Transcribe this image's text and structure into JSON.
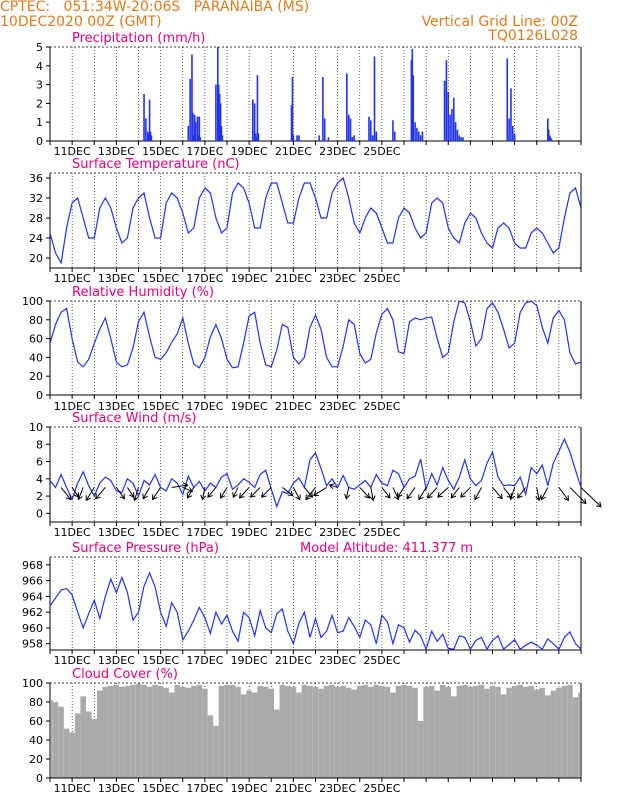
{
  "header": {
    "line1_left": "CPTEC:   051:34W-20:06S   PARANAIBA (MS)",
    "line2_left": "10DEC2020 00Z (GMT)",
    "line1_right": "Vertical Grid Line: 00Z",
    "line2_right": "TQ0126L028"
  },
  "colors": {
    "header": "#e07a1e",
    "title": "#e6007e",
    "line": "#2233ee",
    "cloud": "#aaaaaa",
    "wind_arrow": "#000000"
  },
  "chart_data": [
    {
      "type": "bar",
      "title": "Precipitation (mm/h)",
      "x_tick_labels": [
        "11DEC",
        "13DEC",
        "15DEC",
        "17DEC",
        "19DEC",
        "21DEC",
        "23DEC",
        "25DEC"
      ],
      "ylim": [
        0,
        5
      ],
      "yticks": [
        0,
        1,
        2,
        3,
        4,
        5
      ],
      "x_hours": [
        102,
        104,
        106,
        107,
        108,
        109,
        110,
        150,
        152,
        154,
        155,
        156,
        157,
        158,
        160,
        161,
        162,
        163,
        180,
        182,
        183,
        184,
        185,
        186,
        187,
        220,
        222,
        223,
        224,
        225,
        226,
        262,
        263,
        264,
        268,
        270,
        292,
        296,
        298,
        302,
        322,
        324,
        326,
        328,
        330,
        346,
        348,
        350,
        352,
        354,
        354,
        372,
        374,
        392,
        393,
        394,
        396,
        398,
        400,
        402,
        404,
        428,
        430,
        432,
        434,
        436,
        438,
        440,
        442,
        444,
        446,
        448,
        496,
        498,
        500,
        502,
        504,
        540,
        541,
        542,
        543,
        544,
        545
      ],
      "values": [
        2.5,
        1.2,
        0.5,
        0.4,
        2.2,
        0.5,
        0.3,
        0.8,
        3.3,
        4.6,
        1.5,
        0.3,
        1.4,
        1.0,
        1.3,
        0.3,
        1.3,
        0.2,
        3.0,
        5.0,
        3.0,
        2.5,
        2.0,
        0.8,
        0.3,
        2.2,
        2.0,
        0.4,
        0.2,
        3.5,
        0.4,
        1.9,
        3.4,
        0.3,
        0.3,
        0.3,
        0.3,
        3.4,
        1.2,
        0.2,
        3.6,
        1.4,
        1.2,
        0.2,
        0.3,
        1.3,
        1.1,
        0.3,
        4.5,
        0.5,
        0.2,
        1.1,
        0.5,
        4.3,
        4.9,
        3.5,
        1.0,
        0.7,
        0.5,
        0.3,
        0.5,
        3.2,
        4.3,
        2.6,
        1.4,
        1.7,
        2.3,
        1.0,
        0.6,
        0.3,
        0.2,
        0.2,
        4.4,
        1.2,
        2.8,
        0.8,
        0.4,
        1.2,
        0.6,
        0.3,
        0.2,
        0.1,
        0.0
      ]
    },
    {
      "type": "line",
      "title": "Surface Temperature (nC)",
      "x_tick_labels": [
        "11DEC",
        "13DEC",
        "15DEC",
        "17DEC",
        "19DEC",
        "21DEC",
        "23DEC",
        "25DEC"
      ],
      "ylim": [
        18,
        37
      ],
      "yticks": [
        20,
        24,
        28,
        32,
        36
      ],
      "x_hours": [
        0,
        6,
        12,
        18,
        24,
        30,
        36,
        42,
        48,
        54,
        60,
        66,
        72,
        78,
        84,
        90,
        96,
        102,
        108,
        114,
        120,
        126,
        132,
        138,
        144,
        150,
        156,
        162,
        168,
        174,
        180,
        186,
        192,
        198,
        204,
        210,
        216,
        222,
        228,
        234,
        240,
        246,
        252,
        258,
        264,
        270,
        276,
        282,
        288,
        294,
        300,
        306,
        312,
        318,
        324,
        330,
        336,
        342,
        348,
        354,
        360,
        366,
        372,
        378,
        384,
        390,
        396,
        402,
        408,
        414,
        420,
        426,
        432,
        438,
        444,
        450,
        456,
        462,
        468,
        474,
        480,
        486,
        492,
        498,
        504,
        510,
        516,
        522,
        528,
        534,
        540,
        546,
        552,
        558,
        564,
        570,
        576
      ],
      "values": [
        25,
        21,
        19,
        26,
        31,
        32,
        28,
        24,
        24,
        30,
        32,
        30,
        26,
        23,
        24,
        30,
        32,
        33,
        28,
        24,
        24,
        31,
        33,
        32,
        29,
        25,
        26,
        32,
        34,
        33,
        28,
        25,
        26,
        33,
        35,
        34,
        31,
        26,
        26,
        32,
        35,
        35,
        31,
        27,
        27,
        32,
        35,
        35,
        32,
        28,
        28,
        33,
        35,
        36,
        32,
        27,
        25,
        28,
        30,
        29,
        26,
        23,
        23,
        28,
        30,
        29,
        26,
        24,
        25,
        31,
        32,
        31,
        26,
        24,
        23,
        27,
        29,
        28,
        25,
        23,
        22,
        26,
        27,
        26,
        23,
        22,
        22,
        25,
        26,
        25,
        23,
        21,
        22,
        28,
        33,
        34,
        30
      ]
    },
    {
      "type": "line",
      "title": "Relative Humidity (%)",
      "x_tick_labels": [
        "11DEC",
        "13DEC",
        "15DEC",
        "17DEC",
        "19DEC",
        "21DEC",
        "23DEC",
        "25DEC"
      ],
      "ylim": [
        0,
        100
      ],
      "yticks": [
        0,
        20,
        40,
        60,
        80,
        100
      ],
      "x_hours": [
        0,
        6,
        12,
        18,
        24,
        30,
        36,
        42,
        48,
        54,
        60,
        66,
        72,
        78,
        84,
        90,
        96,
        102,
        108,
        114,
        120,
        126,
        132,
        138,
        144,
        150,
        156,
        162,
        168,
        174,
        180,
        186,
        192,
        198,
        204,
        210,
        216,
        222,
        228,
        234,
        240,
        246,
        252,
        258,
        264,
        270,
        276,
        282,
        288,
        294,
        300,
        306,
        312,
        318,
        324,
        330,
        336,
        342,
        348,
        354,
        360,
        366,
        372,
        378,
        384,
        390,
        396,
        402,
        408,
        414,
        420,
        426,
        432,
        438,
        444,
        450,
        456,
        462,
        468,
        474,
        480,
        486,
        492,
        498,
        504,
        510,
        516,
        522,
        528,
        534,
        540,
        546,
        552,
        558,
        564,
        570,
        576
      ],
      "values": [
        55,
        75,
        88,
        92,
        60,
        35,
        30,
        38,
        55,
        70,
        82,
        60,
        35,
        30,
        32,
        50,
        78,
        88,
        62,
        40,
        38,
        45,
        56,
        65,
        82,
        55,
        33,
        29,
        40,
        62,
        75,
        60,
        38,
        29,
        30,
        55,
        84,
        88,
        55,
        32,
        30,
        48,
        75,
        72,
        40,
        33,
        40,
        72,
        85,
        70,
        40,
        30,
        30,
        52,
        80,
        75,
        44,
        34,
        38,
        66,
        86,
        92,
        80,
        46,
        44,
        78,
        82,
        80,
        82,
        83,
        60,
        40,
        45,
        78,
        100,
        98,
        78,
        52,
        60,
        92,
        98,
        88,
        70,
        50,
        55,
        88,
        98,
        100,
        95,
        72,
        55,
        82,
        90,
        80,
        45,
        33,
        35
      ]
    },
    {
      "type": "line",
      "title": "Surface Wind (m/s)",
      "x_tick_labels": [
        "11DEC",
        "13DEC",
        "15DEC",
        "17DEC",
        "19DEC",
        "21DEC",
        "23DEC",
        "25DEC"
      ],
      "ylim": [
        -1,
        10
      ],
      "yticks": [
        0,
        2,
        4,
        6,
        8,
        10
      ],
      "x_hours": [
        0,
        6,
        12,
        18,
        24,
        30,
        36,
        42,
        48,
        54,
        60,
        66,
        72,
        78,
        84,
        90,
        96,
        102,
        108,
        114,
        120,
        126,
        132,
        138,
        144,
        150,
        156,
        162,
        168,
        174,
        180,
        186,
        192,
        198,
        204,
        210,
        216,
        222,
        228,
        234,
        240,
        246,
        252,
        258,
        264,
        270,
        276,
        282,
        288,
        294,
        300,
        306,
        312,
        318,
        324,
        330,
        336,
        342,
        348,
        354,
        360,
        366,
        372,
        378,
        384,
        390,
        396,
        402,
        408,
        414,
        420,
        426,
        432,
        438,
        444,
        450,
        456,
        462,
        468,
        474,
        480,
        486,
        492,
        498,
        504,
        510,
        516,
        522,
        528,
        534,
        540,
        546,
        552,
        558,
        564,
        570,
        576
      ],
      "values": [
        3.8,
        3.0,
        4.5,
        3.0,
        1.6,
        3.5,
        4.8,
        3.2,
        2.0,
        3.5,
        4.2,
        3.8,
        2.6,
        2.4,
        4.0,
        3.5,
        2.0,
        3.8,
        3.3,
        4.5,
        3.0,
        2.6,
        4.0,
        3.5,
        2.2,
        4.3,
        3.0,
        3.7,
        2.6,
        3.5,
        3.0,
        4.2,
        4.6,
        2.8,
        3.3,
        4.0,
        3.6,
        3.0,
        4.5,
        5.0,
        2.8,
        0.8,
        2.5,
        2.3,
        3.5,
        4.1,
        3.0,
        6.2,
        7.0,
        5.2,
        3.2,
        4.0,
        3.0,
        4.4,
        3.0,
        2.8,
        3.3,
        3.8,
        3.0,
        4.5,
        3.5,
        3.2,
        5.0,
        4.6,
        3.0,
        4.0,
        4.3,
        6.3,
        2.8,
        4.6,
        3.3,
        5.3,
        3.8,
        2.8,
        4.2,
        6.2,
        4.0,
        3.2,
        3.8,
        5.8,
        7.1,
        4.2,
        3.2,
        3.3,
        3.2,
        4.2,
        2.2,
        5.3,
        4.6,
        5.6,
        3.2,
        5.8,
        7.2,
        8.6,
        7.1,
        5.0,
        3.0
      ],
      "vector_x_hours": [
        12,
        24,
        36,
        48,
        60,
        72,
        84,
        96,
        108,
        120,
        132,
        144,
        156,
        168,
        180,
        192,
        204,
        216,
        228,
        240,
        252,
        264,
        276,
        288,
        300,
        312,
        324,
        336,
        348,
        360,
        372,
        384,
        396,
        408,
        420,
        432,
        444,
        456,
        468,
        480,
        492,
        504,
        516,
        528,
        540,
        552,
        564,
        576
      ],
      "vector_u": [
        1.2,
        0.8,
        -0.6,
        -1.0,
        -1.2,
        1.0,
        0.8,
        -0.5,
        -0.8,
        -1.0,
        2.0,
        1.2,
        -0.8,
        -0.3,
        -1.0,
        -0.8,
        -0.6,
        -1.2,
        -1.2,
        -1.2,
        1.3,
        0.8,
        1.0,
        -1.2,
        -1.6,
        -1.0,
        -0.3,
        1.2,
        0.3,
        1.0,
        0.7,
        -0.8,
        -1.0,
        -0.9,
        -1.2,
        -1.3,
        -1.0,
        -1.2,
        -0.8,
        1.2,
        1.0,
        -0.5,
        -1.0,
        0.3,
        -0.8,
        1.2,
        2.0,
        2.5
      ],
      "vector_v": [
        -1.5,
        -1.2,
        -1.5,
        -1.6,
        -1.4,
        -1.4,
        -1.2,
        -1.6,
        -1.4,
        -1.5,
        0.3,
        -0.5,
        -1.3,
        -1.5,
        -1.2,
        -1.3,
        -1.2,
        -1.3,
        -1.2,
        -1.2,
        -1.0,
        -1.5,
        -1.2,
        -1.5,
        -1.0,
        0.3,
        -1.4,
        -1.3,
        -1.6,
        -1.3,
        -1.5,
        -1.2,
        -1.4,
        -1.5,
        -1.3,
        -1.2,
        -1.3,
        -1.2,
        -1.5,
        -1.4,
        -1.3,
        -1.5,
        -1.3,
        -1.6,
        -1.5,
        -1.6,
        -2.0,
        -2.4
      ]
    },
    {
      "type": "line",
      "title": "Surface Pressure (hPa)",
      "annotation": "Model Altitude: 411.377 m",
      "x_tick_labels": [
        "11DEC",
        "13DEC",
        "15DEC",
        "17DEC",
        "19DEC",
        "21DEC",
        "23DEC",
        "25DEC"
      ],
      "ylim": [
        957.2,
        969
      ],
      "yticks": [
        958,
        960,
        962,
        964,
        966,
        968
      ],
      "x_hours": [
        0,
        6,
        12,
        18,
        24,
        30,
        36,
        42,
        48,
        54,
        60,
        66,
        72,
        78,
        84,
        90,
        96,
        102,
        108,
        114,
        120,
        126,
        132,
        138,
        144,
        150,
        156,
        162,
        168,
        174,
        180,
        186,
        192,
        198,
        204,
        210,
        216,
        222,
        228,
        234,
        240,
        246,
        252,
        258,
        264,
        270,
        276,
        282,
        288,
        294,
        300,
        306,
        312,
        318,
        324,
        330,
        336,
        342,
        348,
        354,
        360,
        366,
        372,
        378,
        384,
        390,
        396,
        402,
        408,
        414,
        420,
        426,
        432,
        438,
        444,
        450,
        456,
        462,
        468,
        474,
        480,
        486,
        492,
        498,
        504,
        510,
        516,
        522,
        528,
        534,
        540,
        546,
        552,
        558,
        564,
        570,
        576
      ],
      "values": [
        962.8,
        963.8,
        964.8,
        965.0,
        964.2,
        962.0,
        960.0,
        961.8,
        963.5,
        961.2,
        964.0,
        966.2,
        964.5,
        966.4,
        964.5,
        961.0,
        962.0,
        965.3,
        967.0,
        965.2,
        962.0,
        960.2,
        963.2,
        962.0,
        958.5,
        959.6,
        961.0,
        962.6,
        961.3,
        959.3,
        962.0,
        960.5,
        961.6,
        959.6,
        958.3,
        962.0,
        961.3,
        959.0,
        962.2,
        960.0,
        959.4,
        961.8,
        962.4,
        959.6,
        958.0,
        960.6,
        962.0,
        958.8,
        961.2,
        958.8,
        959.6,
        961.6,
        959.4,
        959.6,
        961.3,
        960.2,
        958.8,
        961.0,
        960.4,
        958.0,
        961.6,
        960.8,
        958.0,
        960.4,
        960.0,
        958.2,
        959.7,
        959.0,
        957.3,
        959.6,
        958.3,
        959.2,
        957.4,
        957.3,
        959.0,
        958.8,
        957.3,
        958.4,
        958.8,
        957.3,
        958.4,
        959.0,
        957.3,
        957.9,
        958.5,
        957.3,
        957.8,
        958.2,
        957.8,
        957.3,
        958.6,
        958.0,
        957.3,
        958.8,
        959.5,
        958.0,
        957.3
      ]
    },
    {
      "type": "bar",
      "title": "Cloud Cover (%)",
      "x_tick_labels": [
        "11DEC",
        "13DEC",
        "15DEC",
        "17DEC",
        "19DEC",
        "21DEC",
        "23DEC",
        "25DEC"
      ],
      "ylim": [
        0,
        100
      ],
      "yticks": [
        0,
        20,
        40,
        60,
        80,
        100
      ],
      "x_hours": [
        0,
        6,
        12,
        18,
        24,
        30,
        36,
        42,
        48,
        54,
        60,
        66,
        72,
        78,
        84,
        90,
        96,
        102,
        108,
        114,
        120,
        126,
        132,
        138,
        144,
        150,
        156,
        162,
        168,
        174,
        180,
        186,
        192,
        198,
        204,
        210,
        216,
        222,
        228,
        234,
        240,
        246,
        252,
        258,
        264,
        270,
        276,
        282,
        288,
        294,
        300,
        306,
        312,
        318,
        324,
        330,
        336,
        342,
        348,
        354,
        360,
        366,
        372,
        378,
        384,
        390,
        396,
        402,
        408,
        414,
        420,
        426,
        432,
        438,
        444,
        450,
        456,
        462,
        468,
        474,
        480,
        486,
        492,
        498,
        504,
        510,
        516,
        522,
        528,
        534,
        540,
        546,
        552,
        558,
        564,
        570,
        576
      ],
      "values": [
        82,
        80,
        75,
        52,
        48,
        68,
        86,
        70,
        62,
        92,
        96,
        97,
        98,
        96,
        97,
        98,
        99,
        98,
        96,
        98,
        97,
        95,
        90,
        98,
        96,
        95,
        97,
        98,
        94,
        66,
        55,
        97,
        98,
        98,
        96,
        88,
        92,
        90,
        97,
        96,
        94,
        72,
        98,
        97,
        96,
        90,
        98,
        97,
        96,
        94,
        97,
        98,
        96,
        97,
        95,
        93,
        97,
        98,
        96,
        98,
        97,
        96,
        90,
        97,
        98,
        97,
        95,
        60,
        96,
        97,
        92,
        98,
        96,
        86,
        97,
        98,
        96,
        97,
        98,
        94,
        97,
        96,
        88,
        95,
        97,
        98,
        96,
        97,
        93,
        95,
        87,
        92,
        95,
        97,
        98,
        85,
        90
      ]
    }
  ]
}
